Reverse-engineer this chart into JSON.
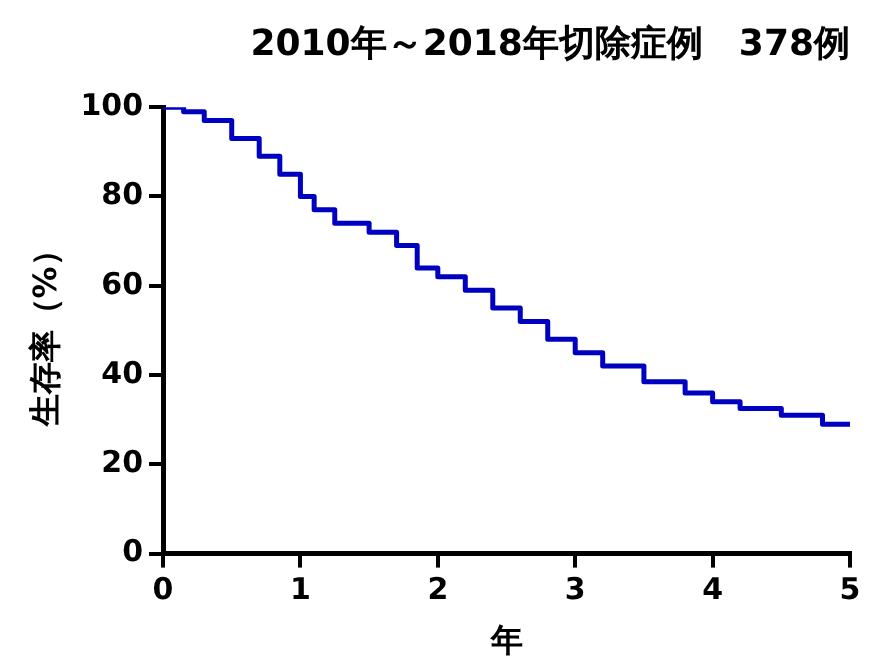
{
  "chart_data": {
    "type": "step",
    "title": "2010年～2018年切除症例　378例",
    "xlabel": "年",
    "ylabel": "生存率（%）",
    "x": [
      0,
      0.15,
      0.3,
      0.5,
      0.7,
      0.85,
      1.0,
      1.1,
      1.25,
      1.5,
      1.7,
      1.85,
      2.0,
      2.2,
      2.4,
      2.6,
      2.8,
      3.0,
      3.2,
      3.5,
      3.8,
      3.9,
      4.0,
      4.2,
      4.5,
      4.8,
      5.0
    ],
    "series": [
      {
        "color": "#0000c0",
        "values": [
          100,
          100,
          99,
          97,
          93,
          89,
          85,
          80,
          77,
          74,
          72,
          69,
          64,
          62,
          59,
          55,
          52,
          48,
          45,
          42,
          38.5,
          36,
          36,
          34,
          32.5,
          31,
          29
        ]
      }
    ],
    "xlim": [
      0,
      5
    ],
    "xticks": [
      0,
      1,
      2,
      3,
      4,
      5
    ],
    "ylim": [
      0,
      100
    ],
    "yticks": [
      0,
      20,
      40,
      60,
      80,
      100
    ],
    "grid": false,
    "legend": false
  }
}
